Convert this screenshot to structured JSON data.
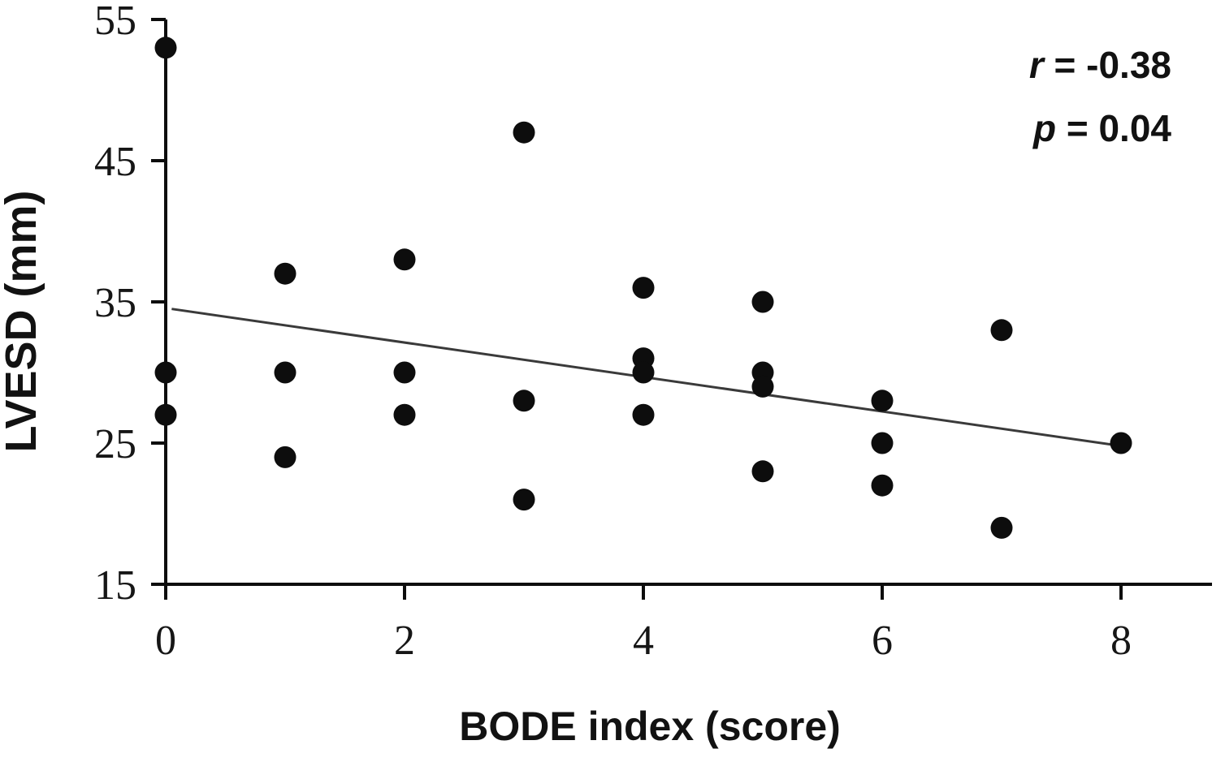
{
  "chart_data": {
    "type": "scatter",
    "title": "",
    "xlabel": "BODE index (score)",
    "ylabel": "LVESD (mm)",
    "x_ticks": [
      0,
      2,
      4,
      6,
      8
    ],
    "y_ticks": [
      15,
      25,
      35,
      45,
      55
    ],
    "xlim": [
      0,
      8.8
    ],
    "ylim": [
      15,
      55.5
    ],
    "grid": false,
    "marker_color": "#0d0d0d",
    "points": [
      [
        0,
        53
      ],
      [
        0,
        30
      ],
      [
        0,
        27
      ],
      [
        1,
        37
      ],
      [
        1,
        30
      ],
      [
        1,
        24
      ],
      [
        2,
        38
      ],
      [
        2,
        30
      ],
      [
        2,
        27
      ],
      [
        3,
        47
      ],
      [
        3,
        28
      ],
      [
        3,
        21
      ],
      [
        4,
        36
      ],
      [
        4,
        31
      ],
      [
        4,
        30
      ],
      [
        4,
        27
      ],
      [
        5,
        35
      ],
      [
        5,
        30
      ],
      [
        5,
        29
      ],
      [
        5,
        23
      ],
      [
        6,
        28
      ],
      [
        6,
        25
      ],
      [
        6,
        22
      ],
      [
        7,
        33
      ],
      [
        7,
        19
      ],
      [
        8,
        25
      ]
    ],
    "regression_line": {
      "x1": 0.05,
      "y1": 34.5,
      "x2": 8.0,
      "y2": 24.8
    },
    "annotation": {
      "r_label": "r",
      "r_rest": " = -0.38",
      "p_label": "p",
      "p_rest": " = 0.04"
    }
  }
}
